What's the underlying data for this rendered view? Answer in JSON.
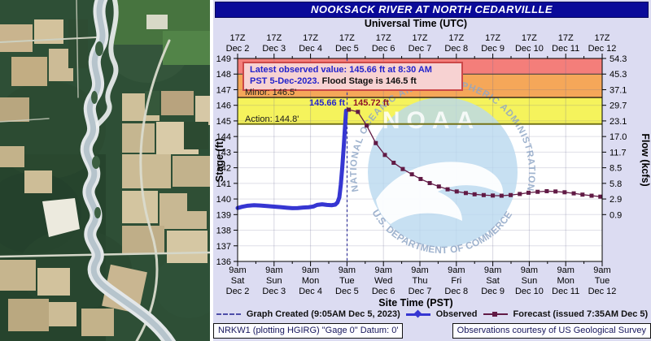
{
  "header": {
    "title": "NOOKSACK RIVER AT NORTH CEDARVILLLE"
  },
  "chart_data": {
    "type": "line",
    "title": "NOOKSACK RIVER AT NORTH CEDARVILLLE",
    "top_axis": {
      "label": "Universal Time (UTC)",
      "ticks": [
        [
          "17Z",
          "Dec 2"
        ],
        [
          "17Z",
          "Dec 3"
        ],
        [
          "17Z",
          "Dec 4"
        ],
        [
          "17Z",
          "Dec 5"
        ],
        [
          "17Z",
          "Dec 6"
        ],
        [
          "17Z",
          "Dec 7"
        ],
        [
          "17Z",
          "Dec 8"
        ],
        [
          "17Z",
          "Dec 9"
        ],
        [
          "17Z",
          "Dec 10"
        ],
        [
          "17Z",
          "Dec 11"
        ],
        [
          "17Z",
          "Dec 12"
        ]
      ]
    },
    "bottom_axis": {
      "label": "Site Time (PST)",
      "ticks": [
        [
          "9am",
          "Sat",
          "Dec 2"
        ],
        [
          "9am",
          "Sun",
          "Dec 3"
        ],
        [
          "9am",
          "Mon",
          "Dec 4"
        ],
        [
          "9am",
          "Tue",
          "Dec 5"
        ],
        [
          "9am",
          "Wed",
          "Dec 6"
        ],
        [
          "9am",
          "Thu",
          "Dec 7"
        ],
        [
          "9am",
          "Fri",
          "Dec 8"
        ],
        [
          "9am",
          "Sat",
          "Dec 9"
        ],
        [
          "9am",
          "Sun",
          "Dec 10"
        ],
        [
          "9am",
          "Mon",
          "Dec 11"
        ],
        [
          "9am",
          "Tue",
          "Dec 12"
        ]
      ]
    },
    "left_axis": {
      "label": "Stage (ft)",
      "min": 136,
      "max": 149,
      "tick_step": 1
    },
    "right_axis": {
      "label": "Flow (kcfs)",
      "ticks": [
        [
          149,
          "54.3"
        ],
        [
          148,
          "45.3"
        ],
        [
          147,
          "37.1"
        ],
        [
          146,
          "29.7"
        ],
        [
          145,
          "23.1"
        ],
        [
          144,
          "17.0"
        ],
        [
          143,
          "11.7"
        ],
        [
          142,
          "8.5"
        ],
        [
          141,
          "5.8"
        ],
        [
          140,
          "2.9"
        ],
        [
          139,
          "0.9"
        ]
      ]
    },
    "x_domain_days": [
      0,
      10
    ],
    "bands": [
      {
        "name": "moderate-flood",
        "from": 148.0,
        "to": 149.0,
        "color": "#f47e7a"
      },
      {
        "name": "minor-flood",
        "from": 146.5,
        "to": 148.0,
        "color": "#f5a759"
      },
      {
        "name": "action",
        "from": 144.8,
        "to": 146.5,
        "color": "#f5f35c"
      }
    ],
    "flood_lines": [
      {
        "stage": 148.0,
        "color": "#3a3a3a",
        "width": 1
      },
      {
        "stage": 146.5,
        "color": "#2a2013",
        "width": 1.3
      },
      {
        "stage": 144.8,
        "color": "#73731a",
        "width": 2
      }
    ],
    "graph_created_line": {
      "t": 3.003,
      "color": "#3b3b9e"
    },
    "series": [
      {
        "name": "Observed",
        "color": "#3636d2",
        "marker": "diamond",
        "points": [
          [
            0,
            139.42
          ],
          [
            0.12,
            139.5
          ],
          [
            0.28,
            139.57
          ],
          [
            0.45,
            139.6
          ],
          [
            0.62,
            139.58
          ],
          [
            0.8,
            139.55
          ],
          [
            1.0,
            139.51
          ],
          [
            1.18,
            139.48
          ],
          [
            1.35,
            139.44
          ],
          [
            1.5,
            139.41
          ],
          [
            1.65,
            139.42
          ],
          [
            1.8,
            139.45
          ],
          [
            1.95,
            139.47
          ],
          [
            2.08,
            139.52
          ],
          [
            2.18,
            139.62
          ],
          [
            2.32,
            139.66
          ],
          [
            2.45,
            139.62
          ],
          [
            2.58,
            139.6
          ],
          [
            2.68,
            139.64
          ],
          [
            2.74,
            139.78
          ],
          [
            2.79,
            140.1
          ],
          [
            2.83,
            140.9
          ],
          [
            2.87,
            142.0
          ],
          [
            2.91,
            143.3
          ],
          [
            2.945,
            144.6
          ],
          [
            2.975,
            145.66
          ]
        ]
      },
      {
        "name": "Forecast",
        "color": "#611a45",
        "marker": "square",
        "points": [
          [
            3.05,
            145.72
          ],
          [
            3.3,
            145.58
          ],
          [
            3.54,
            144.7
          ],
          [
            3.79,
            143.58
          ],
          [
            4.04,
            142.82
          ],
          [
            4.28,
            142.32
          ],
          [
            4.53,
            141.92
          ],
          [
            4.78,
            141.58
          ],
          [
            5.02,
            141.28
          ],
          [
            5.27,
            141.02
          ],
          [
            5.52,
            140.8
          ],
          [
            5.76,
            140.62
          ],
          [
            6.01,
            140.48
          ],
          [
            6.26,
            140.38
          ],
          [
            6.5,
            140.3
          ],
          [
            6.75,
            140.25
          ],
          [
            7.0,
            140.22
          ],
          [
            7.24,
            140.21
          ],
          [
            7.49,
            140.25
          ],
          [
            7.74,
            140.32
          ],
          [
            7.98,
            140.4
          ],
          [
            8.23,
            140.46
          ],
          [
            8.48,
            140.5
          ],
          [
            8.72,
            140.48
          ],
          [
            8.97,
            140.43
          ],
          [
            9.22,
            140.36
          ],
          [
            9.46,
            140.28
          ],
          [
            9.71,
            140.21
          ],
          [
            9.95,
            140.15
          ]
        ]
      }
    ]
  },
  "overlays": {
    "legend_box": {
      "line1": "Latest observed value: 145.66 ft at 8:30 AM",
      "line2_blue": "PST 5-Dec-2023.",
      "line2_black": "  Flood Stage is 146.5 ft"
    },
    "minor_label": "Minor: 146.5'",
    "action_label": "Action: 144.8'",
    "obs_annotation": "145.66 ft",
    "fcst_annotation": "145.72 ft"
  },
  "watermark": {
    "arc_text": "NATIONAL OCEANIC AND ATMOSPHERIC ADMINISTRATION",
    "bottom_arc_text": "U.S. DEPARTMENT OF COMMERCE",
    "center_text": "NOAA"
  },
  "footer": {
    "legend": [
      {
        "label": "Graph Created (9:05AM Dec 5, 2023)",
        "sample": "dashed"
      },
      {
        "label": "Observed",
        "sample": "line-diamond"
      },
      {
        "label": "Forecast (issued 7:35AM Dec 5)",
        "sample": "line-square"
      }
    ],
    "left_box": "NRKW1 (plotting HGIRG) \"Gage 0\" Datum: 0'",
    "right_box": "Observations courtesy of US Geological Survey"
  }
}
